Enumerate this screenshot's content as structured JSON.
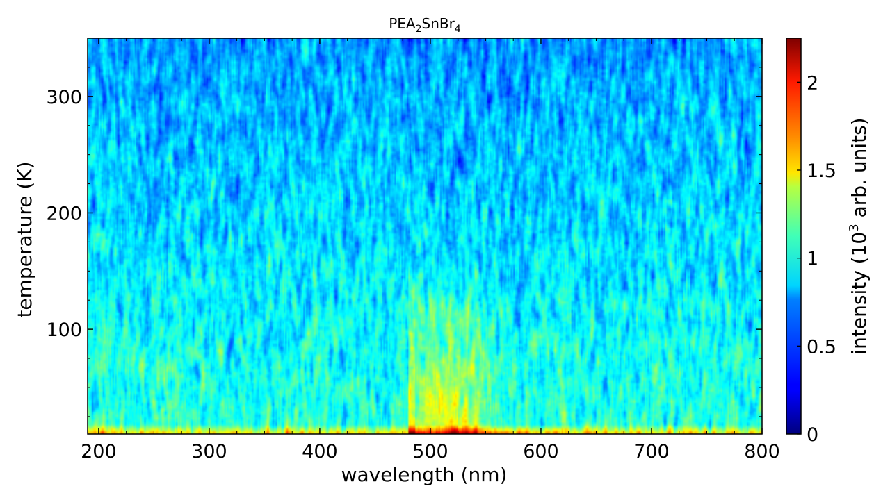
{
  "chart_data": {
    "type": "heatmap",
    "title": "PEA2SnBr4",
    "title_parts": {
      "base1": "PEA",
      "sub1": "2",
      "base2": "SnBr",
      "sub2": "4"
    },
    "xlabel": "wavelength (nm)",
    "ylabel": "temperature (K)",
    "xlim": [
      190,
      800
    ],
    "ylim": [
      10,
      350
    ],
    "x_ticks": [
      200,
      300,
      400,
      500,
      600,
      700,
      800
    ],
    "y_ticks": [
      100,
      200,
      300
    ],
    "colormap": "jet",
    "colorbar": {
      "label": "intensity (10^3 arb. units)",
      "label_parts": {
        "pre": "intensity (10",
        "sup": "3",
        "post": " arb. units)"
      },
      "lim": [
        0,
        2.25
      ],
      "ticks": [
        0,
        0.5,
        1,
        1.5,
        2
      ],
      "tick_labels": [
        "0",
        "0.5",
        "1",
        "1.5",
        "2"
      ]
    },
    "features": [
      {
        "description": "baseline intensity",
        "value_range": [
          0.6,
          1.0
        ]
      },
      {
        "description": "emission band",
        "wavelength_range_nm": [
          480,
          560
        ],
        "temperature_range_K": [
          10,
          170
        ],
        "peak_intensity": 1.9
      },
      {
        "description": "low-temperature edge",
        "temperature_K": 12,
        "intensity": 1.5
      }
    ]
  }
}
